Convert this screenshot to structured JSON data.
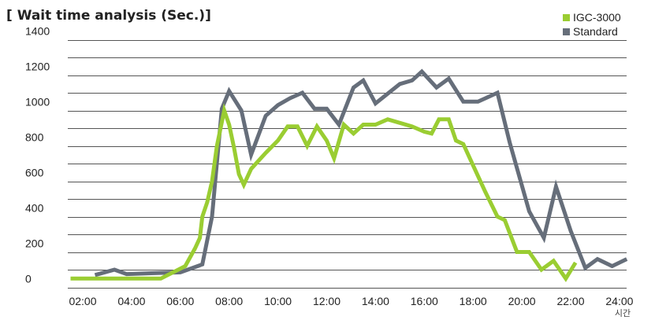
{
  "chart_data": {
    "type": "line",
    "title": "[ Wait time analysis (Sec.)]",
    "xlabel": "시간",
    "ylabel": "",
    "x_ticks": [
      "02:00",
      "04:00",
      "06:00",
      "08:00",
      "10:00",
      "12:00",
      "14:00",
      "16:00",
      "18:00",
      "20:00",
      "22:00",
      "24:00"
    ],
    "y_ticks": [
      0,
      200,
      400,
      600,
      800,
      1000,
      1200,
      1400
    ],
    "ylim": [
      0,
      1400
    ],
    "xlim_hours": [
      1.5,
      25.5
    ],
    "grid": true,
    "legend": "top-right",
    "series": [
      {
        "name": "IGC-3000",
        "color": "#9acd32",
        "points": [
          [
            1.5,
            50
          ],
          [
            2,
            50
          ],
          [
            3,
            50
          ],
          [
            4,
            50
          ],
          [
            5,
            50
          ],
          [
            5.2,
            50
          ],
          [
            6.2,
            120
          ],
          [
            6.6,
            220
          ],
          [
            6.8,
            280
          ],
          [
            6.9,
            400
          ],
          [
            7.1,
            480
          ],
          [
            7.3,
            600
          ],
          [
            7.5,
            800
          ],
          [
            7.8,
            1000
          ],
          [
            8.0,
            920
          ],
          [
            8.2,
            790
          ],
          [
            8.4,
            640
          ],
          [
            8.6,
            580
          ],
          [
            8.9,
            670
          ],
          [
            9.5,
            760
          ],
          [
            10.0,
            830
          ],
          [
            10.4,
            910
          ],
          [
            10.8,
            910
          ],
          [
            11.2,
            800
          ],
          [
            11.6,
            910
          ],
          [
            12.0,
            830
          ],
          [
            12.3,
            730
          ],
          [
            12.7,
            920
          ],
          [
            13.1,
            870
          ],
          [
            13.5,
            920
          ],
          [
            14.0,
            920
          ],
          [
            14.5,
            950
          ],
          [
            15.0,
            930
          ],
          [
            15.5,
            910
          ],
          [
            16.0,
            880
          ],
          [
            16.3,
            870
          ],
          [
            16.6,
            950
          ],
          [
            17.0,
            950
          ],
          [
            17.3,
            830
          ],
          [
            17.6,
            810
          ],
          [
            18.0,
            690
          ],
          [
            18.5,
            540
          ],
          [
            19.0,
            400
          ],
          [
            19.3,
            380
          ],
          [
            19.8,
            200
          ],
          [
            20.3,
            200
          ],
          [
            20.8,
            100
          ],
          [
            21.3,
            150
          ],
          [
            21.8,
            50
          ],
          [
            22.2,
            140
          ]
        ]
      },
      {
        "name": "Standard",
        "color": "#666e7a",
        "points": [
          [
            2.5,
            70
          ],
          [
            3.3,
            100
          ],
          [
            3.8,
            75
          ],
          [
            4.8,
            80
          ],
          [
            6.0,
            85
          ],
          [
            6.9,
            130
          ],
          [
            7.3,
            400
          ],
          [
            7.7,
            1010
          ],
          [
            8.0,
            1110
          ],
          [
            8.5,
            1000
          ],
          [
            8.9,
            750
          ],
          [
            9.5,
            970
          ],
          [
            10.0,
            1030
          ],
          [
            10.5,
            1070
          ],
          [
            11.0,
            1100
          ],
          [
            11.5,
            1010
          ],
          [
            12.0,
            1010
          ],
          [
            12.5,
            920
          ],
          [
            13.1,
            1130
          ],
          [
            13.5,
            1170
          ],
          [
            14.0,
            1040
          ],
          [
            15.0,
            1150
          ],
          [
            15.5,
            1170
          ],
          [
            15.9,
            1220
          ],
          [
            16.5,
            1130
          ],
          [
            17.0,
            1180
          ],
          [
            17.6,
            1050
          ],
          [
            18.2,
            1050
          ],
          [
            19.0,
            1100
          ],
          [
            19.5,
            820
          ],
          [
            20.3,
            430
          ],
          [
            20.9,
            280
          ],
          [
            21.4,
            570
          ],
          [
            22.0,
            320
          ],
          [
            22.6,
            110
          ],
          [
            23.1,
            160
          ],
          [
            23.7,
            120
          ],
          [
            24.3,
            160
          ]
        ]
      }
    ]
  }
}
